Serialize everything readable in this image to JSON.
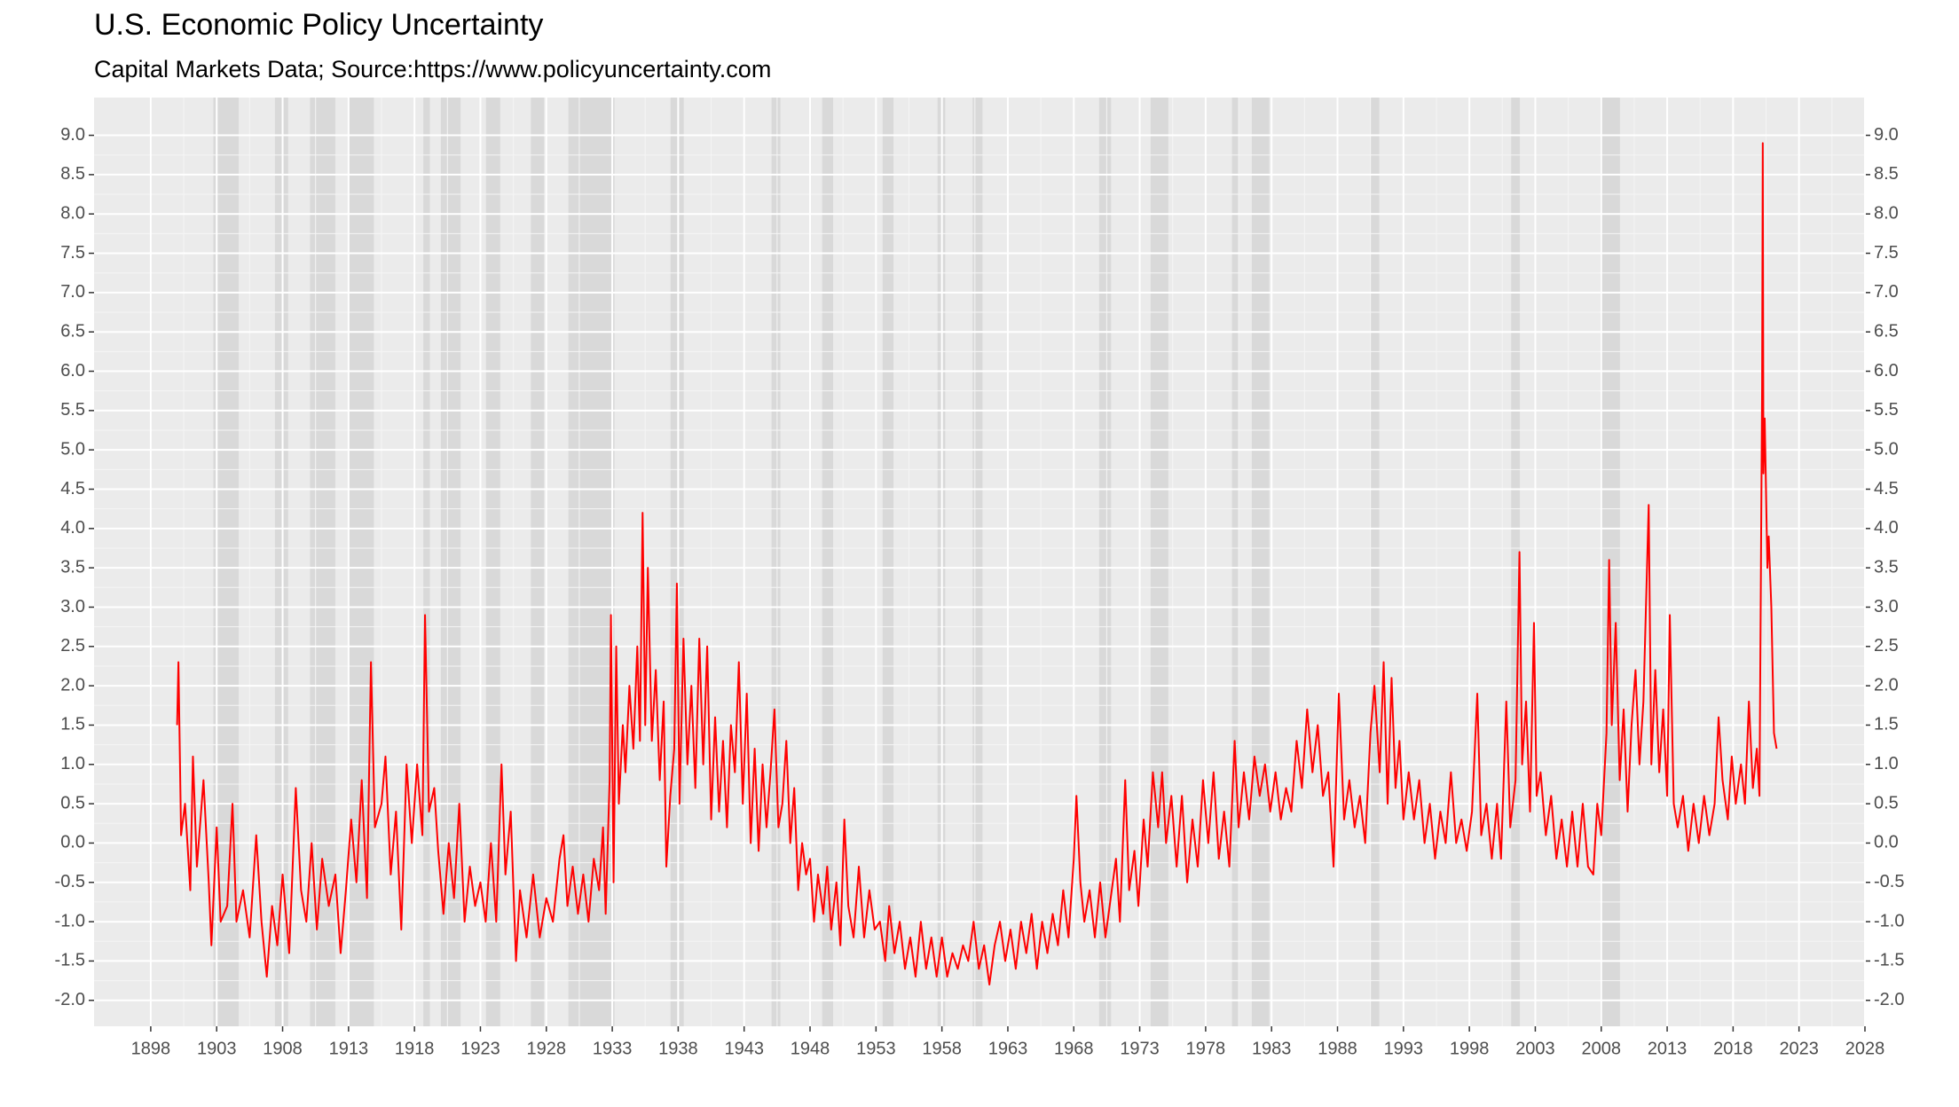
{
  "chart_data": {
    "type": "line",
    "title": "U.S. Economic Policy Uncertainty",
    "subtitle": "Capital Markets Data; Source:https://www.policyuncertainty.com",
    "x": [
      1900.0,
      1900.1,
      1900.3,
      1900.6,
      1901.0,
      1901.2,
      1901.5,
      1902.0,
      1902.4,
      1902.6,
      1903.0,
      1903.3,
      1903.8,
      1904.2,
      1904.5,
      1905.0,
      1905.5,
      1906.0,
      1906.4,
      1906.8,
      1907.2,
      1907.6,
      1908.0,
      1908.5,
      1909.0,
      1909.4,
      1909.8,
      1910.2,
      1910.6,
      1911.0,
      1911.5,
      1912.0,
      1912.4,
      1912.8,
      1913.2,
      1913.6,
      1914.0,
      1914.4,
      1914.7,
      1915.0,
      1915.5,
      1915.8,
      1916.2,
      1916.6,
      1917.0,
      1917.4,
      1917.8,
      1918.2,
      1918.6,
      1918.8,
      1919.1,
      1919.5,
      1919.8,
      1920.2,
      1920.6,
      1921.0,
      1921.4,
      1921.8,
      1922.2,
      1922.6,
      1923.0,
      1923.4,
      1923.8,
      1924.2,
      1924.6,
      1924.9,
      1925.3,
      1925.7,
      1926.0,
      1926.5,
      1927.0,
      1927.5,
      1928.0,
      1928.5,
      1929.0,
      1929.3,
      1929.6,
      1930.0,
      1930.4,
      1930.8,
      1931.2,
      1931.6,
      1932.0,
      1932.3,
      1932.5,
      1932.8,
      1932.9,
      1933.1,
      1933.3,
      1933.5,
      1933.8,
      1934.0,
      1934.3,
      1934.6,
      1934.9,
      1935.1,
      1935.3,
      1935.5,
      1935.7,
      1936.0,
      1936.3,
      1936.6,
      1936.9,
      1937.1,
      1937.4,
      1937.7,
      1937.9,
      1938.1,
      1938.4,
      1938.7,
      1939.0,
      1939.3,
      1939.6,
      1939.9,
      1940.2,
      1940.5,
      1940.8,
      1941.1,
      1941.4,
      1941.7,
      1942.0,
      1942.3,
      1942.6,
      1942.9,
      1943.2,
      1943.5,
      1943.8,
      1944.1,
      1944.4,
      1944.7,
      1945.0,
      1945.3,
      1945.6,
      1945.9,
      1946.2,
      1946.5,
      1946.8,
      1947.1,
      1947.4,
      1947.7,
      1948.0,
      1948.3,
      1948.6,
      1949.0,
      1949.3,
      1949.6,
      1950.0,
      1950.3,
      1950.6,
      1950.9,
      1951.3,
      1951.7,
      1952.1,
      1952.5,
      1952.9,
      1953.3,
      1953.7,
      1954.0,
      1954.4,
      1954.8,
      1955.2,
      1955.6,
      1956.0,
      1956.4,
      1956.8,
      1957.2,
      1957.6,
      1958.0,
      1958.4,
      1958.8,
      1959.2,
      1959.6,
      1960.0,
      1960.4,
      1960.8,
      1961.2,
      1961.6,
      1962.0,
      1962.4,
      1962.8,
      1963.2,
      1963.6,
      1964.0,
      1964.4,
      1964.8,
      1965.2,
      1965.6,
      1966.0,
      1966.4,
      1966.8,
      1967.2,
      1967.6,
      1968.0,
      1968.2,
      1968.5,
      1968.8,
      1969.2,
      1969.6,
      1970.0,
      1970.4,
      1970.8,
      1971.2,
      1971.5,
      1971.9,
      1972.2,
      1972.6,
      1972.9,
      1973.3,
      1973.6,
      1974.0,
      1974.4,
      1974.7,
      1975.0,
      1975.4,
      1975.8,
      1976.2,
      1976.6,
      1977.0,
      1977.4,
      1977.8,
      1978.2,
      1978.6,
      1979.0,
      1979.4,
      1979.8,
      1980.2,
      1980.5,
      1980.9,
      1981.3,
      1981.7,
      1982.1,
      1982.5,
      1982.9,
      1983.3,
      1983.7,
      1984.1,
      1984.5,
      1984.9,
      1985.3,
      1985.7,
      1986.1,
      1986.5,
      1986.9,
      1987.3,
      1987.7,
      1988.1,
      1988.5,
      1988.9,
      1989.3,
      1989.7,
      1990.1,
      1990.5,
      1990.8,
      1991.2,
      1991.5,
      1991.8,
      1992.1,
      1992.4,
      1992.7,
      1993.0,
      1993.4,
      1993.8,
      1994.2,
      1994.6,
      1995.0,
      1995.4,
      1995.8,
      1996.2,
      1996.6,
      1997.0,
      1997.4,
      1997.8,
      1998.2,
      1998.6,
      1998.9,
      1999.3,
      1999.7,
      2000.1,
      2000.4,
      2000.8,
      2001.1,
      2001.5,
      2001.8,
      2002.0,
      2002.3,
      2002.6,
      2002.9,
      2003.1,
      2003.4,
      2003.8,
      2004.2,
      2004.6,
      2005.0,
      2005.4,
      2005.8,
      2006.2,
      2006.6,
      2007.0,
      2007.4,
      2007.7,
      2008.0,
      2008.4,
      2008.6,
      2008.8,
      2009.1,
      2009.4,
      2009.7,
      2010.0,
      2010.3,
      2010.6,
      2010.9,
      2011.2,
      2011.6,
      2011.8,
      2012.1,
      2012.4,
      2012.7,
      2013.0,
      2013.2,
      2013.5,
      2013.8,
      2014.2,
      2014.6,
      2015.0,
      2015.4,
      2015.8,
      2016.2,
      2016.6,
      2016.9,
      2017.2,
      2017.6,
      2017.9,
      2018.2,
      2018.6,
      2018.9,
      2019.2,
      2019.5,
      2019.8,
      2020.0,
      2020.2,
      2020.25,
      2020.3,
      2020.4,
      2020.6,
      2020.7,
      2020.9,
      2021.0,
      2021.1,
      2021.3
    ],
    "series": [
      {
        "color": "#ff0000",
        "values": [
          1.5,
          2.3,
          0.1,
          0.5,
          -0.6,
          1.1,
          -0.3,
          0.8,
          -0.5,
          -1.3,
          0.2,
          -1.0,
          -0.8,
          0.5,
          -1.0,
          -0.6,
          -1.2,
          0.1,
          -1.0,
          -1.7,
          -0.8,
          -1.3,
          -0.4,
          -1.4,
          0.7,
          -0.6,
          -1.0,
          0.0,
          -1.1,
          -0.2,
          -0.8,
          -0.4,
          -1.4,
          -0.6,
          0.3,
          -0.5,
          0.8,
          -0.7,
          2.3,
          0.2,
          0.5,
          1.1,
          -0.4,
          0.4,
          -1.1,
          1.0,
          0.0,
          1.0,
          0.1,
          2.9,
          0.4,
          0.7,
          -0.1,
          -0.9,
          0.0,
          -0.7,
          0.5,
          -1.0,
          -0.3,
          -0.8,
          -0.5,
          -1.0,
          0.0,
          -1.0,
          1.0,
          -0.4,
          0.4,
          -1.5,
          -0.6,
          -1.2,
          -0.4,
          -1.2,
          -0.7,
          -1.0,
          -0.2,
          0.1,
          -0.8,
          -0.3,
          -0.9,
          -0.4,
          -1.0,
          -0.2,
          -0.6,
          0.2,
          -0.9,
          0.8,
          2.9,
          -0.5,
          2.5,
          0.5,
          1.5,
          0.9,
          2.0,
          1.2,
          2.5,
          1.3,
          4.2,
          1.5,
          3.5,
          1.3,
          2.2,
          0.8,
          1.8,
          -0.3,
          0.6,
          1.2,
          3.3,
          0.5,
          2.6,
          1.0,
          2.0,
          0.7,
          2.6,
          1.0,
          2.5,
          0.3,
          1.6,
          0.4,
          1.3,
          0.2,
          1.5,
          0.9,
          2.3,
          0.5,
          1.9,
          0.0,
          1.2,
          -0.1,
          1.0,
          0.2,
          0.9,
          1.7,
          0.2,
          0.5,
          1.3,
          0.0,
          0.7,
          -0.6,
          0.0,
          -0.4,
          -0.2,
          -1.0,
          -0.4,
          -0.9,
          -0.3,
          -1.1,
          -0.5,
          -1.3,
          0.3,
          -0.8,
          -1.2,
          -0.3,
          -1.2,
          -0.6,
          -1.1,
          -1.0,
          -1.5,
          -0.8,
          -1.4,
          -1.0,
          -1.6,
          -1.2,
          -1.7,
          -1.0,
          -1.6,
          -1.2,
          -1.7,
          -1.2,
          -1.7,
          -1.4,
          -1.6,
          -1.3,
          -1.5,
          -1.0,
          -1.6,
          -1.3,
          -1.8,
          -1.3,
          -1.0,
          -1.5,
          -1.1,
          -1.6,
          -1.0,
          -1.4,
          -0.9,
          -1.6,
          -1.0,
          -1.4,
          -0.9,
          -1.3,
          -0.6,
          -1.2,
          -0.2,
          0.6,
          -0.5,
          -1.0,
          -0.6,
          -1.2,
          -0.5,
          -1.2,
          -0.7,
          -0.2,
          -1.0,
          0.8,
          -0.6,
          -0.1,
          -0.8,
          0.3,
          -0.3,
          0.9,
          0.2,
          0.9,
          0.0,
          0.6,
          -0.3,
          0.6,
          -0.5,
          0.3,
          -0.3,
          0.8,
          0.0,
          0.9,
          -0.2,
          0.4,
          -0.3,
          1.3,
          0.2,
          0.9,
          0.3,
          1.1,
          0.6,
          1.0,
          0.4,
          0.9,
          0.3,
          0.7,
          0.4,
          1.3,
          0.7,
          1.7,
          0.9,
          1.5,
          0.6,
          0.9,
          -0.3,
          1.9,
          0.3,
          0.8,
          0.2,
          0.6,
          0.0,
          1.4,
          2.0,
          0.9,
          2.3,
          0.5,
          2.1,
          0.7,
          1.3,
          0.3,
          0.9,
          0.3,
          0.8,
          0.0,
          0.5,
          -0.2,
          0.4,
          0.0,
          0.9,
          0.0,
          0.3,
          -0.1,
          0.4,
          1.9,
          0.1,
          0.5,
          -0.2,
          0.5,
          -0.2,
          1.8,
          0.2,
          0.8,
          3.7,
          1.0,
          1.8,
          0.4,
          2.8,
          0.6,
          0.9,
          0.1,
          0.6,
          -0.2,
          0.3,
          -0.3,
          0.4,
          -0.3,
          0.5,
          -0.3,
          -0.4,
          0.5,
          0.1,
          1.4,
          3.6,
          1.5,
          2.8,
          0.8,
          1.7,
          0.4,
          1.5,
          2.2,
          1.0,
          1.8,
          4.3,
          1.0,
          2.2,
          0.9,
          1.7,
          0.6,
          2.9,
          0.5,
          0.2,
          0.6,
          -0.1,
          0.5,
          0.0,
          0.6,
          0.1,
          0.5,
          1.6,
          0.8,
          0.3,
          1.1,
          0.5,
          1.0,
          0.5,
          1.8,
          0.7,
          1.2,
          0.6,
          5.8,
          8.9,
          4.7,
          5.4,
          3.5,
          3.9,
          3.0,
          2.2,
          1.4,
          1.2
        ]
      }
    ],
    "recessions": [
      [
        1902.75,
        1904.67
      ],
      [
        1907.42,
        1908.42
      ],
      [
        1910.08,
        1912.0
      ],
      [
        1913.0,
        1914.92
      ],
      [
        1918.67,
        1919.17
      ],
      [
        1920.0,
        1921.5
      ],
      [
        1923.42,
        1924.5
      ],
      [
        1926.83,
        1927.83
      ],
      [
        1929.67,
        1933.17
      ],
      [
        1937.42,
        1938.42
      ],
      [
        1945.08,
        1945.75
      ],
      [
        1948.92,
        1949.75
      ],
      [
        1953.5,
        1954.33
      ],
      [
        1957.67,
        1958.25
      ],
      [
        1960.33,
        1961.08
      ],
      [
        1969.92,
        1970.83
      ],
      [
        1973.83,
        1975.17
      ],
      [
        1980.0,
        1980.5
      ],
      [
        1981.5,
        1982.83
      ],
      [
        1990.5,
        1991.17
      ],
      [
        2001.17,
        2001.83
      ],
      [
        2007.92,
        2009.42
      ]
    ],
    "recession_color": "#d9d9d9",
    "xlim": [
      1893.7,
      2028
    ],
    "xticks": [
      1898,
      1903,
      1908,
      1913,
      1918,
      1923,
      1928,
      1933,
      1938,
      1943,
      1948,
      1953,
      1958,
      1963,
      1968,
      1973,
      1978,
      1983,
      1988,
      1993,
      1998,
      2003,
      2008,
      2013,
      2018,
      2023,
      2028
    ],
    "ylim": [
      -2.33,
      9.48
    ],
    "yticks": [
      {
        "value": -2,
        "label": "-2.0"
      },
      -1.5,
      {
        "value": -1,
        "label": "-1.0"
      },
      -0.5,
      {
        "value": 0,
        "label": "0.0"
      },
      0.5,
      {
        "value": 1,
        "label": "1.0"
      },
      1.5,
      {
        "value": 2,
        "label": "2.0"
      },
      2.5,
      {
        "value": 3,
        "label": "3.0"
      },
      3.5,
      {
        "value": 4,
        "label": "4.0"
      },
      4.5,
      {
        "value": 5,
        "label": "5.0"
      },
      5.5,
      {
        "value": 6,
        "label": "6.0"
      },
      6.5,
      {
        "value": 7,
        "label": "7.0"
      },
      7.5,
      {
        "value": 8,
        "label": "8.0"
      },
      8.5,
      {
        "value": 9,
        "label": "9.0"
      }
    ],
    "grid": true
  }
}
